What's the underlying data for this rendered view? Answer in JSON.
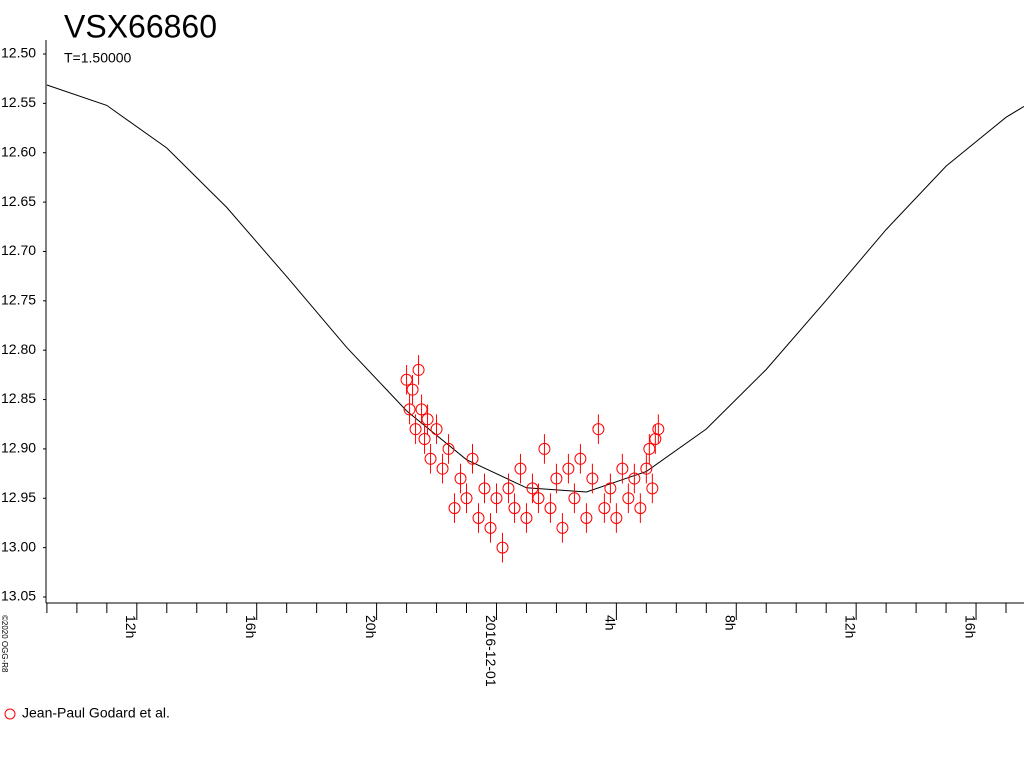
{
  "chart_data": {
    "type": "scatter",
    "title": "VSX66860",
    "subtitle": "T=1.50000",
    "credit": "©2020 OGG-R8",
    "xlim": [
      -15.03,
      17.6
    ],
    "ylim": [
      12.5,
      13.05
    ],
    "inverted_y": true,
    "yticks": [
      {
        "value": 12.5,
        "label": "12.50"
      },
      {
        "value": 12.55,
        "label": "12.55"
      },
      {
        "value": 12.6,
        "label": "12.60"
      },
      {
        "value": 12.65,
        "label": "12.65"
      },
      {
        "value": 12.7,
        "label": "12.70"
      },
      {
        "value": 12.75,
        "label": "12.75"
      },
      {
        "value": 12.8,
        "label": "12.80"
      },
      {
        "value": 12.85,
        "label": "12.85"
      },
      {
        "value": 12.9,
        "label": "12.90"
      },
      {
        "value": 12.95,
        "label": "12.95"
      },
      {
        "value": 13.0,
        "label": "13.00"
      },
      {
        "value": 13.05,
        "label": "13.05"
      }
    ],
    "xticks": [
      {
        "value": -12,
        "label": "12h"
      },
      {
        "value": -8,
        "label": "16h"
      },
      {
        "value": -4,
        "label": "20h"
      },
      {
        "value": 0,
        "label": "2016-12-01"
      },
      {
        "value": 4,
        "label": "4h"
      },
      {
        "value": 8,
        "label": "8h"
      },
      {
        "value": 12,
        "label": "12h"
      },
      {
        "value": 16,
        "label": "16h"
      }
    ],
    "xminorticks": [
      -15,
      -14,
      -13,
      -11,
      -10,
      -9,
      -7,
      -6,
      -5,
      -3,
      -2,
      -1,
      1,
      2,
      3,
      5,
      6,
      7,
      9,
      10,
      11,
      13,
      14,
      15,
      17
    ],
    "fit": {
      "color": "#000000",
      "x": [
        -15,
        -13,
        -11,
        -9,
        -7,
        -5,
        -3,
        -1,
        1,
        3,
        5,
        7,
        9,
        11,
        13,
        15,
        17,
        17.6
      ],
      "values": [
        12.5314,
        12.5521,
        12.5952,
        12.6554,
        12.7255,
        12.7971,
        12.8615,
        12.9109,
        12.9394,
        12.9436,
        12.9229,
        12.8798,
        12.8196,
        12.7495,
        12.6779,
        12.6135,
        12.5641,
        12.5531
      ]
    },
    "series": [
      {
        "name": "Jean-Paul Godard et al.",
        "color": "#ff0000",
        "error": 0.015,
        "x": [
          -3.0,
          -2.9,
          -2.8,
          -2.7,
          -2.6,
          -2.5,
          -2.4,
          -2.3,
          -2.2,
          -2.0,
          -1.8,
          -1.6,
          -1.4,
          -1.2,
          -1.0,
          -0.8,
          -0.6,
          -0.4,
          -0.2,
          0.0,
          0.2,
          0.4,
          0.6,
          0.8,
          1.0,
          1.2,
          1.4,
          1.6,
          1.8,
          2.0,
          2.2,
          2.4,
          2.6,
          2.8,
          3.0,
          3.2,
          3.4,
          3.6,
          3.8,
          4.0,
          4.2,
          4.4,
          4.6,
          4.8,
          5.0,
          5.1,
          5.2,
          5.3,
          5.4
        ],
        "values": [
          12.83,
          12.86,
          12.84,
          12.88,
          12.82,
          12.86,
          12.89,
          12.87,
          12.91,
          12.88,
          12.92,
          12.9,
          12.96,
          12.93,
          12.95,
          12.91,
          12.97,
          12.94,
          12.98,
          12.95,
          13.0,
          12.94,
          12.96,
          12.92,
          12.97,
          12.94,
          12.95,
          12.9,
          12.96,
          12.93,
          12.98,
          12.92,
          12.95,
          12.91,
          12.97,
          12.93,
          12.88,
          12.96,
          12.94,
          12.97,
          12.92,
          12.95,
          12.93,
          12.96,
          12.92,
          12.9,
          12.94,
          12.89,
          12.88
        ]
      }
    ]
  }
}
